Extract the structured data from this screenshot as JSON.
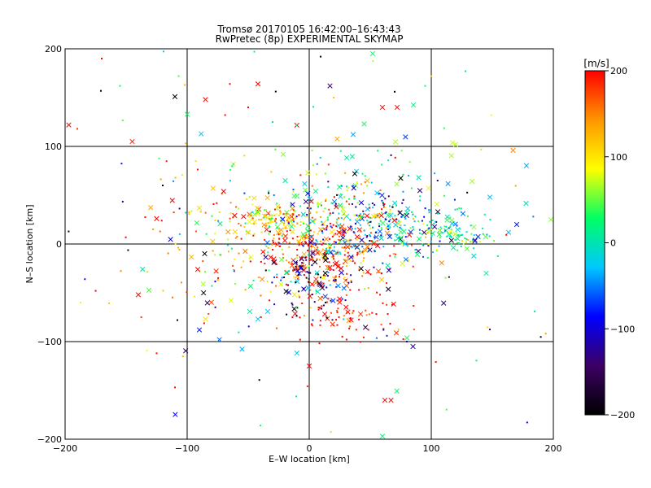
{
  "chart_data": {
    "type": "scatter",
    "title_line1": "Tromsø 20170105 16:42:00–16:43:43",
    "title_line2": "RwPretec (8p) EXPERIMENTAL SKYMAP",
    "xlabel": "E–W location [km]",
    "ylabel": "N–S location [km]",
    "xlim": [
      -200,
      200
    ],
    "ylim": [
      -200,
      200
    ],
    "xticks": [
      -200,
      -100,
      0,
      100,
      200
    ],
    "yticks": [
      -200,
      -100,
      0,
      100,
      200
    ],
    "xtick_labels": [
      "−200",
      "−100",
      "0",
      "100",
      "200"
    ],
    "ytick_labels": [
      "−200",
      "−100",
      "0",
      "100",
      "200"
    ],
    "grid": true,
    "colorbar": {
      "label": "[m/s]",
      "range": [
        -200,
        200
      ],
      "ticks": [
        200,
        100,
        0,
        -100,
        -200
      ],
      "tick_labels": [
        "200",
        "100",
        "0",
        "−100",
        "−200"
      ],
      "colormap": [
        "#000000",
        "#3c0064",
        "#0000ff",
        "#00c8ff",
        "#00ff64",
        "#ffff00",
        "#ff9600",
        "#ff0000"
      ]
    },
    "marker_types": [
      "dot",
      "cross"
    ],
    "clusters": [
      {
        "cx": 10,
        "cy": -10,
        "sx": 28,
        "sy": 22,
        "n": 260,
        "vmean": 175,
        "vsd": 40
      },
      {
        "cx": 0,
        "cy": -35,
        "sx": 18,
        "sy": 15,
        "n": 90,
        "vmean": -130,
        "vsd": 70
      },
      {
        "cx": -25,
        "cy": 25,
        "sx": 20,
        "sy": 8,
        "n": 110,
        "vmean": 110,
        "vsd": 50
      },
      {
        "cx": 50,
        "cy": 20,
        "sx": 35,
        "sy": 18,
        "n": 220,
        "vmean": -40,
        "vsd": 70
      },
      {
        "cx": 110,
        "cy": 12,
        "sx": 25,
        "sy": 10,
        "n": 110,
        "vmean": 20,
        "vsd": 45
      },
      {
        "cx": 30,
        "cy": 40,
        "sx": 40,
        "sy": 25,
        "n": 140,
        "vmean": 60,
        "vsd": 90
      },
      {
        "cx": -60,
        "cy": 0,
        "sx": 40,
        "sy": 40,
        "n": 120,
        "vmean": 120,
        "vsd": 90
      },
      {
        "cx": 30,
        "cy": -75,
        "sx": 25,
        "sy": 15,
        "n": 70,
        "vmean": 190,
        "vsd": 30
      },
      {
        "cx": 0,
        "cy": 0,
        "sx": 110,
        "sy": 85,
        "n": 180,
        "vmean": 0,
        "vsd": 140
      }
    ],
    "outliers": [
      {
        "x": -197,
        "y": 122,
        "v": 200,
        "m": "cross"
      },
      {
        "x": -190,
        "y": 118,
        "v": 180,
        "m": "dot"
      },
      {
        "x": -170,
        "y": 190,
        "v": 200,
        "m": "dot"
      },
      {
        "x": -155,
        "y": 162,
        "v": 30,
        "m": "dot"
      },
      {
        "x": -145,
        "y": 105,
        "v": 190,
        "m": "cross"
      },
      {
        "x": -110,
        "y": 151,
        "v": -200,
        "m": "cross"
      },
      {
        "x": -107,
        "y": 172,
        "v": 40,
        "m": "dot"
      },
      {
        "x": -102,
        "y": 163,
        "v": 120,
        "m": "dot"
      },
      {
        "x": -100,
        "y": 133,
        "v": 30,
        "m": "cross"
      },
      {
        "x": -85,
        "y": 148,
        "v": 200,
        "m": "cross"
      },
      {
        "x": -65,
        "y": 164,
        "v": 200,
        "m": "dot"
      },
      {
        "x": -50,
        "y": 140,
        "v": 200,
        "m": "dot"
      },
      {
        "x": -45,
        "y": 197,
        "v": 20,
        "m": "dot"
      },
      {
        "x": -42,
        "y": 164,
        "v": 200,
        "m": "cross"
      },
      {
        "x": -30,
        "y": 125,
        "v": 0,
        "m": "dot"
      },
      {
        "x": 17,
        "y": 162,
        "v": -150,
        "m": "cross"
      },
      {
        "x": 20,
        "y": 150,
        "v": 120,
        "m": "dot"
      },
      {
        "x": 45,
        "y": 123,
        "v": 30,
        "m": "cross"
      },
      {
        "x": 52,
        "y": 195,
        "v": 30,
        "m": "cross"
      },
      {
        "x": 60,
        "y": 140,
        "v": 200,
        "m": "cross"
      },
      {
        "x": 70,
        "y": 156,
        "v": -200,
        "m": "dot"
      },
      {
        "x": 72,
        "y": 140,
        "v": 200,
        "m": "cross"
      },
      {
        "x": 95,
        "y": 162,
        "v": 30,
        "m": "dot"
      },
      {
        "x": 100,
        "y": 172,
        "v": 110,
        "m": "dot"
      },
      {
        "x": 120,
        "y": 102,
        "v": 70,
        "m": "cross"
      },
      {
        "x": 128,
        "y": 177,
        "v": 0,
        "m": "dot"
      },
      {
        "x": 167,
        "y": 96,
        "v": 150,
        "m": "cross"
      },
      {
        "x": 198,
        "y": 25,
        "v": 60,
        "m": "cross"
      },
      {
        "x": -125,
        "y": 26,
        "v": 200,
        "m": "cross"
      },
      {
        "x": -120,
        "y": 60,
        "v": -190,
        "m": "dot"
      },
      {
        "x": -140,
        "y": -52,
        "v": 200,
        "m": "cross"
      },
      {
        "x": -175,
        "y": -48,
        "v": 200,
        "m": "dot"
      },
      {
        "x": -125,
        "y": -112,
        "v": 200,
        "m": "dot"
      },
      {
        "x": -108,
        "y": -78,
        "v": -200,
        "m": "dot"
      },
      {
        "x": -90,
        "y": -88,
        "v": -80,
        "m": "cross"
      },
      {
        "x": -110,
        "y": -147,
        "v": 200,
        "m": "dot"
      },
      {
        "x": -40,
        "y": -186,
        "v": 30,
        "m": "dot"
      },
      {
        "x": 0,
        "y": -125,
        "v": 200,
        "m": "cross"
      },
      {
        "x": 62,
        "y": -160,
        "v": 200,
        "m": "cross"
      },
      {
        "x": 67,
        "y": -160,
        "v": 200,
        "m": "cross"
      },
      {
        "x": 60,
        "y": -197,
        "v": 20,
        "m": "cross"
      },
      {
        "x": 85,
        "y": -105,
        "v": -120,
        "m": "cross"
      },
      {
        "x": 80,
        "y": -100,
        "v": -110,
        "m": "dot"
      },
      {
        "x": 170,
        "y": 20,
        "v": -80,
        "m": "cross"
      },
      {
        "x": 148,
        "y": 48,
        "v": -30,
        "m": "cross"
      },
      {
        "x": 145,
        "y": -30,
        "v": 10,
        "m": "cross"
      }
    ]
  }
}
